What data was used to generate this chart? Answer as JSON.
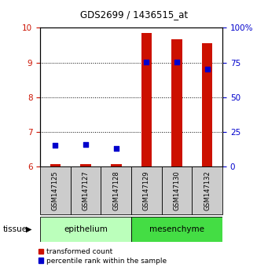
{
  "title": "GDS2699 / 1436515_at",
  "samples": [
    "GSM147125",
    "GSM147127",
    "GSM147128",
    "GSM147129",
    "GSM147130",
    "GSM147132"
  ],
  "red_values": [
    6.08,
    6.08,
    6.08,
    9.85,
    9.68,
    9.55
  ],
  "blue_values": [
    6.62,
    6.65,
    6.52,
    9.02,
    9.01,
    8.82
  ],
  "ylim_left": [
    6,
    10
  ],
  "ylim_right": [
    0,
    100
  ],
  "yticks_left": [
    6,
    7,
    8,
    9,
    10
  ],
  "yticks_right": [
    0,
    25,
    50,
    75,
    100
  ],
  "ytick_labels_right": [
    "0",
    "25",
    "50",
    "75",
    "100%"
  ],
  "legend_items": [
    {
      "label": "transformed count",
      "color": "#cc1100"
    },
    {
      "label": "percentile rank within the sample",
      "color": "#0000cc"
    }
  ],
  "bar_color": "#cc1100",
  "dot_color": "#0000cc",
  "bar_width": 0.35,
  "tick_color_left": "#cc1100",
  "tick_color_right": "#0000cc",
  "bg_color": "#ffffff",
  "sample_box_color": "#cccccc",
  "epithelium_color": "#bbffbb",
  "mesenchyme_color": "#44dd44"
}
